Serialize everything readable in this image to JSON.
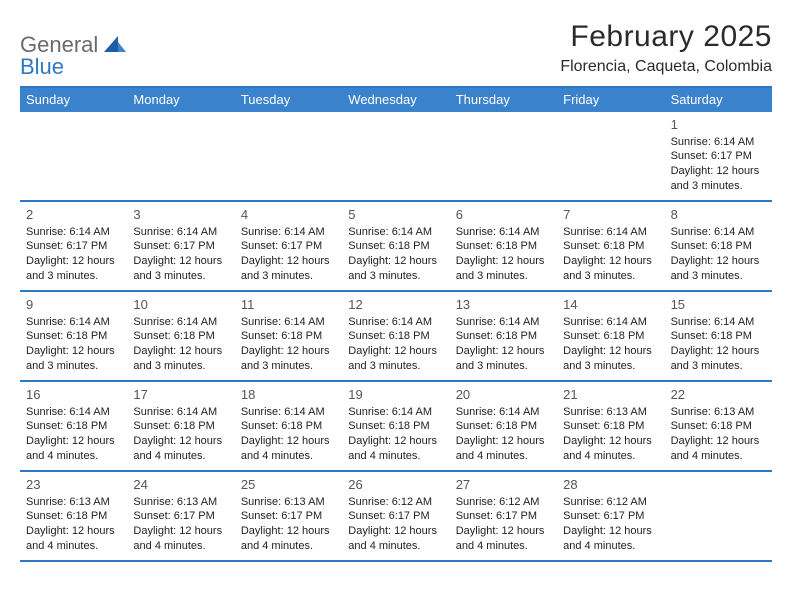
{
  "logo": {
    "word1": "General",
    "word2": "Blue"
  },
  "title": "February 2025",
  "location": "Florencia, Caqueta, Colombia",
  "colors": {
    "header_bg": "#3a82cc",
    "header_text": "#ffffff",
    "rule": "#2f78c2",
    "daynum": "#555555",
    "body_text": "#222222",
    "logo_gray": "#6b6b6b",
    "logo_blue": "#2f78c2",
    "background": "#ffffff"
  },
  "days_of_week": [
    "Sunday",
    "Monday",
    "Tuesday",
    "Wednesday",
    "Thursday",
    "Friday",
    "Saturday"
  ],
  "weeks": [
    [
      null,
      null,
      null,
      null,
      null,
      null,
      {
        "n": "1",
        "sr": "Sunrise: 6:14 AM",
        "ss": "Sunset: 6:17 PM",
        "dl1": "Daylight: 12 hours",
        "dl2": "and 3 minutes."
      }
    ],
    [
      {
        "n": "2",
        "sr": "Sunrise: 6:14 AM",
        "ss": "Sunset: 6:17 PM",
        "dl1": "Daylight: 12 hours",
        "dl2": "and 3 minutes."
      },
      {
        "n": "3",
        "sr": "Sunrise: 6:14 AM",
        "ss": "Sunset: 6:17 PM",
        "dl1": "Daylight: 12 hours",
        "dl2": "and 3 minutes."
      },
      {
        "n": "4",
        "sr": "Sunrise: 6:14 AM",
        "ss": "Sunset: 6:17 PM",
        "dl1": "Daylight: 12 hours",
        "dl2": "and 3 minutes."
      },
      {
        "n": "5",
        "sr": "Sunrise: 6:14 AM",
        "ss": "Sunset: 6:18 PM",
        "dl1": "Daylight: 12 hours",
        "dl2": "and 3 minutes."
      },
      {
        "n": "6",
        "sr": "Sunrise: 6:14 AM",
        "ss": "Sunset: 6:18 PM",
        "dl1": "Daylight: 12 hours",
        "dl2": "and 3 minutes."
      },
      {
        "n": "7",
        "sr": "Sunrise: 6:14 AM",
        "ss": "Sunset: 6:18 PM",
        "dl1": "Daylight: 12 hours",
        "dl2": "and 3 minutes."
      },
      {
        "n": "8",
        "sr": "Sunrise: 6:14 AM",
        "ss": "Sunset: 6:18 PM",
        "dl1": "Daylight: 12 hours",
        "dl2": "and 3 minutes."
      }
    ],
    [
      {
        "n": "9",
        "sr": "Sunrise: 6:14 AM",
        "ss": "Sunset: 6:18 PM",
        "dl1": "Daylight: 12 hours",
        "dl2": "and 3 minutes."
      },
      {
        "n": "10",
        "sr": "Sunrise: 6:14 AM",
        "ss": "Sunset: 6:18 PM",
        "dl1": "Daylight: 12 hours",
        "dl2": "and 3 minutes."
      },
      {
        "n": "11",
        "sr": "Sunrise: 6:14 AM",
        "ss": "Sunset: 6:18 PM",
        "dl1": "Daylight: 12 hours",
        "dl2": "and 3 minutes."
      },
      {
        "n": "12",
        "sr": "Sunrise: 6:14 AM",
        "ss": "Sunset: 6:18 PM",
        "dl1": "Daylight: 12 hours",
        "dl2": "and 3 minutes."
      },
      {
        "n": "13",
        "sr": "Sunrise: 6:14 AM",
        "ss": "Sunset: 6:18 PM",
        "dl1": "Daylight: 12 hours",
        "dl2": "and 3 minutes."
      },
      {
        "n": "14",
        "sr": "Sunrise: 6:14 AM",
        "ss": "Sunset: 6:18 PM",
        "dl1": "Daylight: 12 hours",
        "dl2": "and 3 minutes."
      },
      {
        "n": "15",
        "sr": "Sunrise: 6:14 AM",
        "ss": "Sunset: 6:18 PM",
        "dl1": "Daylight: 12 hours",
        "dl2": "and 3 minutes."
      }
    ],
    [
      {
        "n": "16",
        "sr": "Sunrise: 6:14 AM",
        "ss": "Sunset: 6:18 PM",
        "dl1": "Daylight: 12 hours",
        "dl2": "and 4 minutes."
      },
      {
        "n": "17",
        "sr": "Sunrise: 6:14 AM",
        "ss": "Sunset: 6:18 PM",
        "dl1": "Daylight: 12 hours",
        "dl2": "and 4 minutes."
      },
      {
        "n": "18",
        "sr": "Sunrise: 6:14 AM",
        "ss": "Sunset: 6:18 PM",
        "dl1": "Daylight: 12 hours",
        "dl2": "and 4 minutes."
      },
      {
        "n": "19",
        "sr": "Sunrise: 6:14 AM",
        "ss": "Sunset: 6:18 PM",
        "dl1": "Daylight: 12 hours",
        "dl2": "and 4 minutes."
      },
      {
        "n": "20",
        "sr": "Sunrise: 6:14 AM",
        "ss": "Sunset: 6:18 PM",
        "dl1": "Daylight: 12 hours",
        "dl2": "and 4 minutes."
      },
      {
        "n": "21",
        "sr": "Sunrise: 6:13 AM",
        "ss": "Sunset: 6:18 PM",
        "dl1": "Daylight: 12 hours",
        "dl2": "and 4 minutes."
      },
      {
        "n": "22",
        "sr": "Sunrise: 6:13 AM",
        "ss": "Sunset: 6:18 PM",
        "dl1": "Daylight: 12 hours",
        "dl2": "and 4 minutes."
      }
    ],
    [
      {
        "n": "23",
        "sr": "Sunrise: 6:13 AM",
        "ss": "Sunset: 6:18 PM",
        "dl1": "Daylight: 12 hours",
        "dl2": "and 4 minutes."
      },
      {
        "n": "24",
        "sr": "Sunrise: 6:13 AM",
        "ss": "Sunset: 6:17 PM",
        "dl1": "Daylight: 12 hours",
        "dl2": "and 4 minutes."
      },
      {
        "n": "25",
        "sr": "Sunrise: 6:13 AM",
        "ss": "Sunset: 6:17 PM",
        "dl1": "Daylight: 12 hours",
        "dl2": "and 4 minutes."
      },
      {
        "n": "26",
        "sr": "Sunrise: 6:12 AM",
        "ss": "Sunset: 6:17 PM",
        "dl1": "Daylight: 12 hours",
        "dl2": "and 4 minutes."
      },
      {
        "n": "27",
        "sr": "Sunrise: 6:12 AM",
        "ss": "Sunset: 6:17 PM",
        "dl1": "Daylight: 12 hours",
        "dl2": "and 4 minutes."
      },
      {
        "n": "28",
        "sr": "Sunrise: 6:12 AM",
        "ss": "Sunset: 6:17 PM",
        "dl1": "Daylight: 12 hours",
        "dl2": "and 4 minutes."
      },
      null
    ]
  ]
}
